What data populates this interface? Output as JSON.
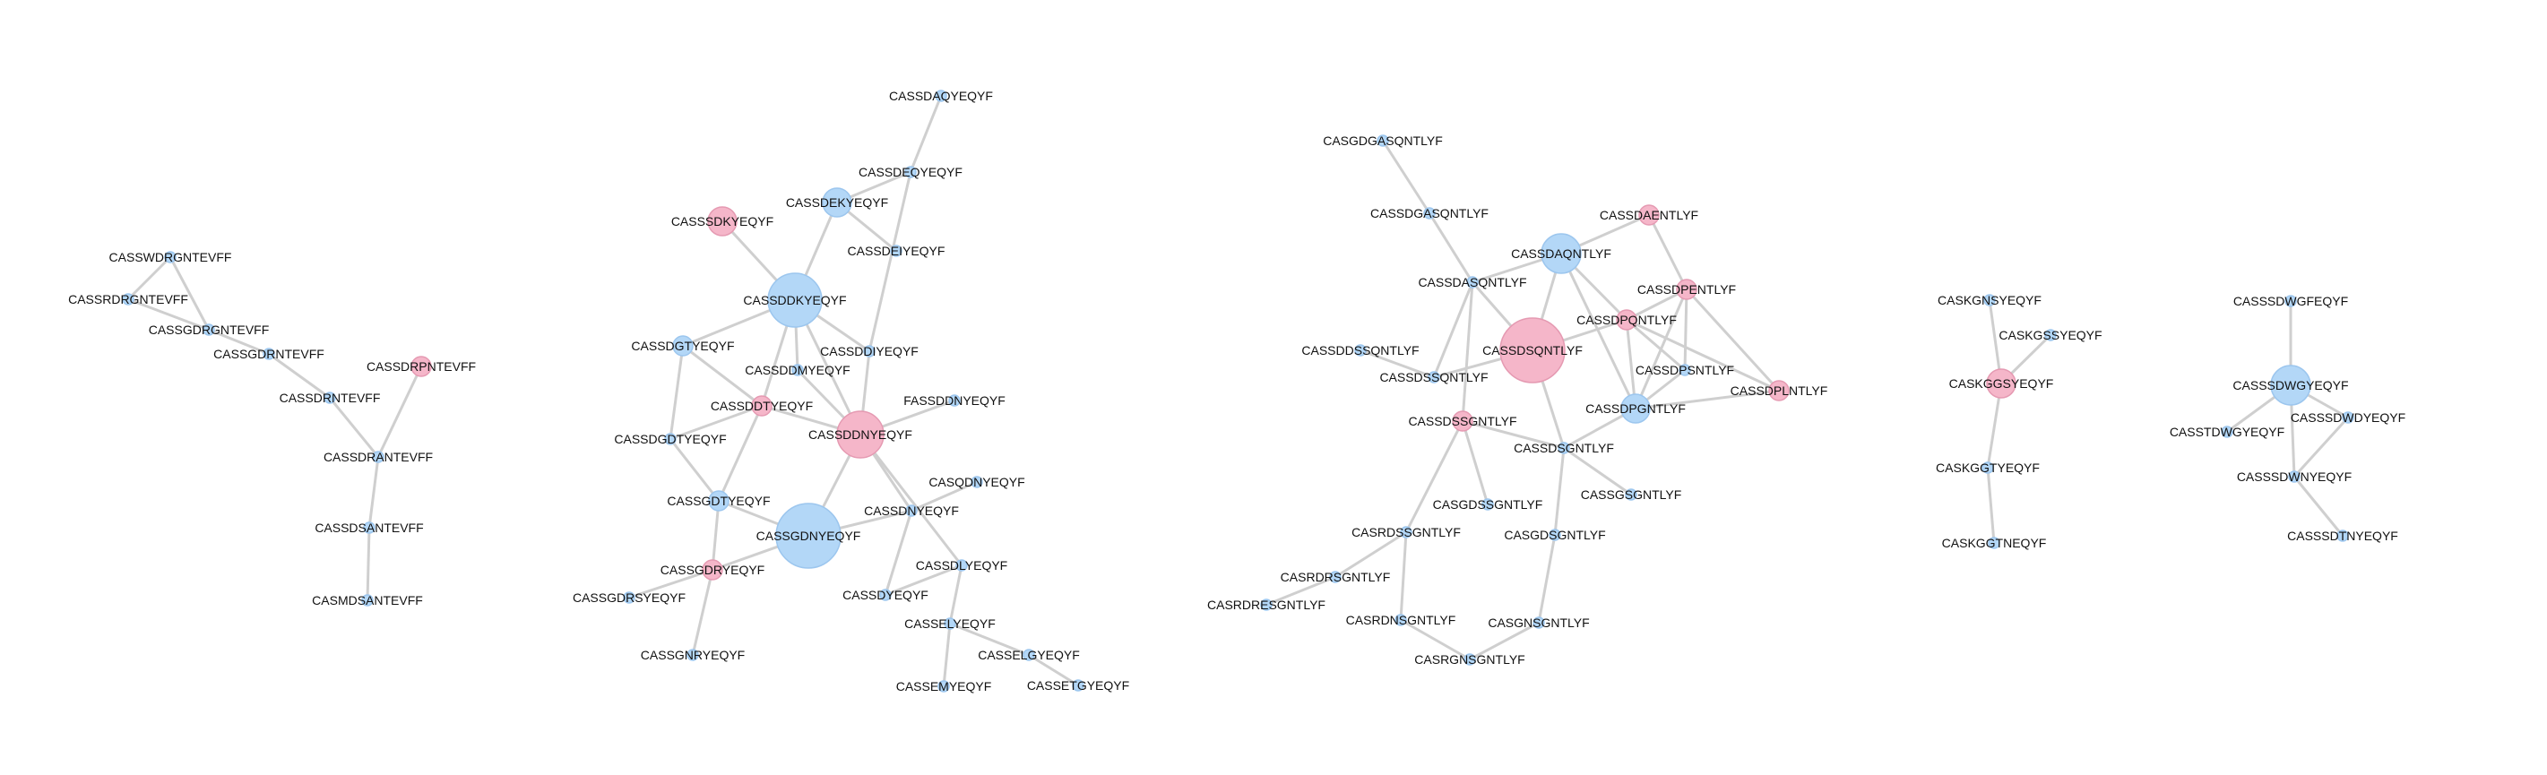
{
  "colors": {
    "blue_fill": "#b3d7f7",
    "blue_stroke": "#9cc6ee",
    "pink_fill": "#f5b6c9",
    "pink_stroke": "#e59ab2",
    "edge": "#cfcfcf",
    "label": "#111111"
  },
  "nodes": [
    {
      "id": "CASSWDRGNTEVFF",
      "color": "blue",
      "size": 1
    },
    {
      "id": "CASSRDRGNTEVFF",
      "color": "blue",
      "size": 1
    },
    {
      "id": "CASSGDRGNTEVFF",
      "color": "blue",
      "size": 1
    },
    {
      "id": "CASSGDRNTEVFF",
      "color": "blue",
      "size": 1
    },
    {
      "id": "CASSDRPNTEVFF",
      "color": "pink",
      "size": 2
    },
    {
      "id": "CASSDRNTEVFF",
      "color": "blue",
      "size": 1
    },
    {
      "id": "CASSDRANTEVFF",
      "color": "blue",
      "size": 1
    },
    {
      "id": "CASSDSANTEVFF",
      "color": "blue",
      "size": 1
    },
    {
      "id": "CASMDSANTEVFF",
      "color": "blue",
      "size": 1
    },
    {
      "id": "CASSDAQYEQYF",
      "color": "blue",
      "size": 1
    },
    {
      "id": "CASSDEQYEQYF",
      "color": "blue",
      "size": 1
    },
    {
      "id": "CASSDEKYEQYF",
      "color": "blue",
      "size": 3
    },
    {
      "id": "CASSSDKYEQYF",
      "color": "pink",
      "size": 3
    },
    {
      "id": "CASSDEIYEQYF",
      "color": "blue",
      "size": 1
    },
    {
      "id": "CASSDDKYEQYF",
      "color": "blue",
      "size": 6
    },
    {
      "id": "CASSDGTYEQYF",
      "color": "blue",
      "size": 2
    },
    {
      "id": "CASSDDIYEQYF",
      "color": "blue",
      "size": 1
    },
    {
      "id": "CASSDDMYEQYF",
      "color": "blue",
      "size": 1
    },
    {
      "id": "CASSDDTYEQYF",
      "color": "pink",
      "size": 2
    },
    {
      "id": "FASSDDNYEQYF",
      "color": "blue",
      "size": 1
    },
    {
      "id": "CASSDDNYEQYF",
      "color": "pink",
      "size": 5
    },
    {
      "id": "CASSDGDTYEQYF",
      "color": "blue",
      "size": 1
    },
    {
      "id": "CASQDNYEQYF",
      "color": "blue",
      "size": 1
    },
    {
      "id": "CASSGDTYEQYF",
      "color": "blue",
      "size": 2
    },
    {
      "id": "CASSDNYEQYF",
      "color": "blue",
      "size": 1
    },
    {
      "id": "CASSGDNYEQYF",
      "color": "blue",
      "size": 7
    },
    {
      "id": "CASSGDRYEQYF",
      "color": "pink",
      "size": 2
    },
    {
      "id": "CASSDLYEQYF",
      "color": "blue",
      "size": 1
    },
    {
      "id": "CASSGDRSYEQYF",
      "color": "blue",
      "size": 1
    },
    {
      "id": "CASSDYEQYF",
      "color": "blue",
      "size": 1
    },
    {
      "id": "CASSELYEQYF",
      "color": "blue",
      "size": 1
    },
    {
      "id": "CASSGNRYEQYF",
      "color": "blue",
      "size": 1
    },
    {
      "id": "CASSELGYEQYF",
      "color": "blue",
      "size": 1
    },
    {
      "id": "CASSEMYEQYF",
      "color": "blue",
      "size": 1
    },
    {
      "id": "CASSETGYEQYF",
      "color": "blue",
      "size": 1
    },
    {
      "id": "CASGDGASQNTLYF",
      "color": "blue",
      "size": 1
    },
    {
      "id": "CASSDGASQNTLYF",
      "color": "blue",
      "size": 1
    },
    {
      "id": "CASSDAENTLYF",
      "color": "pink",
      "size": 2
    },
    {
      "id": "CASSDAQNTLYF",
      "color": "blue",
      "size": 4
    },
    {
      "id": "CASSDASQNTLYF",
      "color": "blue",
      "size": 1
    },
    {
      "id": "CASSDPENTLYF",
      "color": "pink",
      "size": 2
    },
    {
      "id": "CASSDPQNTLYF",
      "color": "pink",
      "size": 2
    },
    {
      "id": "CASSDDSSQNTLYF",
      "color": "blue",
      "size": 1
    },
    {
      "id": "CASSDSQNTLYF",
      "color": "pink",
      "size": 7
    },
    {
      "id": "CASSDPSNTLYF",
      "color": "blue",
      "size": 1
    },
    {
      "id": "CASSDSSQNTLYF",
      "color": "blue",
      "size": 1
    },
    {
      "id": "CASSDPLNTLYF",
      "color": "pink",
      "size": 2
    },
    {
      "id": "CASSDPGNTLYF",
      "color": "blue",
      "size": 3
    },
    {
      "id": "CASSDSSGNTLYF",
      "color": "pink",
      "size": 2
    },
    {
      "id": "CASSDSGNTLYF",
      "color": "blue",
      "size": 1
    },
    {
      "id": "CASSGSGNTLYF",
      "color": "blue",
      "size": 1
    },
    {
      "id": "CASGDSSGNTLYF",
      "color": "blue",
      "size": 1
    },
    {
      "id": "CASRDSSGNTLYF",
      "color": "blue",
      "size": 1
    },
    {
      "id": "CASGDSGNTLYF",
      "color": "blue",
      "size": 1
    },
    {
      "id": "CASRDRSGNTLYF",
      "color": "blue",
      "size": 1
    },
    {
      "id": "CASRDRESGNTLYF",
      "color": "blue",
      "size": 1
    },
    {
      "id": "CASRDNSGNTLYF",
      "color": "blue",
      "size": 1
    },
    {
      "id": "CASGNSGNTLYF",
      "color": "blue",
      "size": 1
    },
    {
      "id": "CASRGNSGNTLYF",
      "color": "blue",
      "size": 1
    },
    {
      "id": "CASKGNSYEQYF",
      "color": "blue",
      "size": 1
    },
    {
      "id": "CASKGSSYEQYF",
      "color": "blue",
      "size": 1
    },
    {
      "id": "CASKGGSYEQYF",
      "color": "pink",
      "size": 3
    },
    {
      "id": "CASKGGTYEQYF",
      "color": "blue",
      "size": 1
    },
    {
      "id": "CASKGGTNEQYF",
      "color": "blue",
      "size": 1
    },
    {
      "id": "CASSSDWGFEQYF",
      "color": "blue",
      "size": 1
    },
    {
      "id": "CASSSDWGYEQYF",
      "color": "blue",
      "size": 4
    },
    {
      "id": "CASSTDWGYEQYF",
      "color": "blue",
      "size": 1
    },
    {
      "id": "CASSSDWDYEQYF",
      "color": "blue",
      "size": 1
    },
    {
      "id": "CASSSDWNYEQYF",
      "color": "blue",
      "size": 1
    },
    {
      "id": "CASSSDTNYEQYF",
      "color": "blue",
      "size": 1
    }
  ],
  "edges": [
    [
      "CASSWDRGNTEVFF",
      "CASSRDRGNTEVFF"
    ],
    [
      "CASSWDRGNTEVFF",
      "CASSGDRGNTEVFF"
    ],
    [
      "CASSRDRGNTEVFF",
      "CASSGDRGNTEVFF"
    ],
    [
      "CASSGDRGNTEVFF",
      "CASSGDRNTEVFF"
    ],
    [
      "CASSGDRNTEVFF",
      "CASSDRNTEVFF"
    ],
    [
      "CASSDRNTEVFF",
      "CASSDRANTEVFF"
    ],
    [
      "CASSDRPNTEVFF",
      "CASSDRANTEVFF"
    ],
    [
      "CASSDRANTEVFF",
      "CASSDSANTEVFF"
    ],
    [
      "CASSDSANTEVFF",
      "CASMDSANTEVFF"
    ],
    [
      "CASSDAQYEQYF",
      "CASSDEQYEQYF"
    ],
    [
      "CASSDEQYEQYF",
      "CASSDEKYEQYF"
    ],
    [
      "CASSDEQYEQYF",
      "CASSDDIYEQYF"
    ],
    [
      "CASSDEKYEQYF",
      "CASSDDKYEQYF"
    ],
    [
      "CASSDEKYEQYF",
      "CASSDEIYEQYF"
    ],
    [
      "CASSSDKYEQYF",
      "CASSDDKYEQYF"
    ],
    [
      "CASSDDKYEQYF",
      "CASSDDIYEQYF"
    ],
    [
      "CASSDDKYEQYF",
      "CASSDDMYEQYF"
    ],
    [
      "CASSDDKYEQYF",
      "CASSDDTYEQYF"
    ],
    [
      "CASSDDKYEQYF",
      "CASSDDNYEQYF"
    ],
    [
      "CASSDDKYEQYF",
      "CASSDGTYEQYF"
    ],
    [
      "CASSDDIYEQYF",
      "CASSDDNYEQYF"
    ],
    [
      "CASSDDMYEQYF",
      "CASSDDNYEQYF"
    ],
    [
      "CASSDDTYEQYF",
      "CASSDDNYEQYF"
    ],
    [
      "CASSDGTYEQYF",
      "CASSDDTYEQYF"
    ],
    [
      "CASSDGTYEQYF",
      "CASSDGDTYEQYF"
    ],
    [
      "CASSDDTYEQYF",
      "CASSDGDTYEQYF"
    ],
    [
      "CASSDDTYEQYF",
      "CASSGDTYEQYF"
    ],
    [
      "FASSDDNYEQYF",
      "CASSDDNYEQYF"
    ],
    [
      "CASSDDNYEQYF",
      "CASSGDNYEQYF"
    ],
    [
      "CASSDDNYEQYF",
      "CASSDNYEQYF"
    ],
    [
      "CASSDDNYEQYF",
      "CASSDLYEQYF"
    ],
    [
      "CASSDGDTYEQYF",
      "CASSGDTYEQYF"
    ],
    [
      "CASSGDTYEQYF",
      "CASSGDNYEQYF"
    ],
    [
      "CASSGDTYEQYF",
      "CASSGDRYEQYF"
    ],
    [
      "CASSGDNYEQYF",
      "CASSGDRYEQYF"
    ],
    [
      "CASQDNYEQYF",
      "CASSDNYEQYF"
    ],
    [
      "CASSDNYEQYF",
      "CASSGDNYEQYF"
    ],
    [
      "CASSDNYEQYF",
      "CASSDYEQYF"
    ],
    [
      "CASSDLYEQYF",
      "CASSDYEQYF"
    ],
    [
      "CASSDLYEQYF",
      "CASSELYEQYF"
    ],
    [
      "CASSGDRYEQYF",
      "CASSGDRSYEQYF"
    ],
    [
      "CASSGDRYEQYF",
      "CASSGNRYEQYF"
    ],
    [
      "CASSELYEQYF",
      "CASSELGYEQYF"
    ],
    [
      "CASSELYEQYF",
      "CASSEMYEQYF"
    ],
    [
      "CASSELGYEQYF",
      "CASSETGYEQYF"
    ],
    [
      "CASGDGASQNTLYF",
      "CASSDGASQNTLYF"
    ],
    [
      "CASSDGASQNTLYF",
      "CASSDASQNTLYF"
    ],
    [
      "CASSDASQNTLYF",
      "CASSDAQNTLYF"
    ],
    [
      "CASSDASQNTLYF",
      "CASSDSQNTLYF"
    ],
    [
      "CASSDASQNTLYF",
      "CASSDSSQNTLYF"
    ],
    [
      "CASSDASQNTLYF",
      "CASSDSSGNTLYF"
    ],
    [
      "CASSDAQNTLYF",
      "CASSDSQNTLYF"
    ],
    [
      "CASSDAQNTLYF",
      "CASSDAENTLYF"
    ],
    [
      "CASSDAENTLYF",
      "CASSDPENTLYF"
    ],
    [
      "CASSDAQNTLYF",
      "CASSDPQNTLYF"
    ],
    [
      "CASSDAQNTLYF",
      "CASSDPGNTLYF"
    ],
    [
      "CASSDPENTLYF",
      "CASSDPQNTLYF"
    ],
    [
      "CASSDPENTLYF",
      "CASSDPSNTLYF"
    ],
    [
      "CASSDPENTLYF",
      "CASSDPLNTLYF"
    ],
    [
      "CASSDPENTLYF",
      "CASSDPGNTLYF"
    ],
    [
      "CASSDPQNTLYF",
      "CASSDSQNTLYF"
    ],
    [
      "CASSDPQNTLYF",
      "CASSDPSNTLYF"
    ],
    [
      "CASSDPQNTLYF",
      "CASSDPLNTLYF"
    ],
    [
      "CASSDPQNTLYF",
      "CASSDPGNTLYF"
    ],
    [
      "CASSDPSNTLYF",
      "CASSDPGNTLYF"
    ],
    [
      "CASSDPGNTLYF",
      "CASSDPLNTLYF"
    ],
    [
      "CASSDPGNTLYF",
      "CASSDSGNTLYF"
    ],
    [
      "CASSDDSSQNTLYF",
      "CASSDSSQNTLYF"
    ],
    [
      "CASSDSSQNTLYF",
      "CASSDSQNTLYF"
    ],
    [
      "CASSDSQNTLYF",
      "CASSDSGNTLYF"
    ],
    [
      "CASSDSSGNTLYF",
      "CASSDSGNTLYF"
    ],
    [
      "CASSDSSGNTLYF",
      "CASGDSSGNTLYF"
    ],
    [
      "CASSDSSGNTLYF",
      "CASRDSSGNTLYF"
    ],
    [
      "CASSDSGNTLYF",
      "CASSGSGNTLYF"
    ],
    [
      "CASSDSGNTLYF",
      "CASGDSGNTLYF"
    ],
    [
      "CASRDSSGNTLYF",
      "CASRDRSGNTLYF"
    ],
    [
      "CASRDSSGNTLYF",
      "CASRDNSGNTLYF"
    ],
    [
      "CASRDRSGNTLYF",
      "CASRDRESGNTLYF"
    ],
    [
      "CASGDSGNTLYF",
      "CASGNSGNTLYF"
    ],
    [
      "CASRDNSGNTLYF",
      "CASRGNSGNTLYF"
    ],
    [
      "CASGNSGNTLYF",
      "CASRGNSGNTLYF"
    ],
    [
      "CASKGNSYEQYF",
      "CASKGGSYEQYF"
    ],
    [
      "CASKGSSYEQYF",
      "CASKGGSYEQYF"
    ],
    [
      "CASKGGSYEQYF",
      "CASKGGTYEQYF"
    ],
    [
      "CASKGGTYEQYF",
      "CASKGGTNEQYF"
    ],
    [
      "CASSSDWGFEQYF",
      "CASSSDWGYEQYF"
    ],
    [
      "CASSSDWGYEQYF",
      "CASSTDWGYEQYF"
    ],
    [
      "CASSSDWGYEQYF",
      "CASSSDWDYEQYF"
    ],
    [
      "CASSSDWGYEQYF",
      "CASSSDWNYEQYF"
    ],
    [
      "CASSSDWDYEQYF",
      "CASSSDWNYEQYF"
    ],
    [
      "CASSSDWNYEQYF",
      "CASSSDTNYEQYF"
    ]
  ]
}
